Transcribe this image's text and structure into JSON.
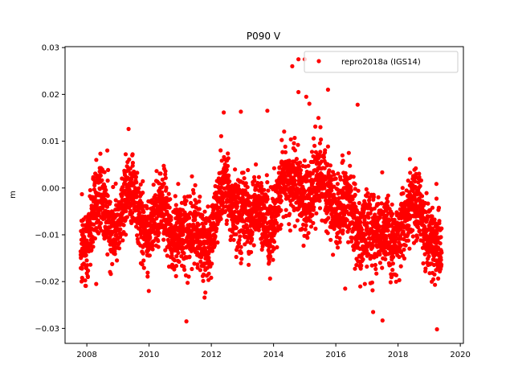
{
  "chart_data": {
    "type": "scatter",
    "title": "P090 V",
    "xlabel": "",
    "ylabel": "m",
    "xlim": [
      2007.3,
      2020.1
    ],
    "ylim": [
      -0.0332,
      0.0302
    ],
    "xticks": [
      2008,
      2010,
      2012,
      2014,
      2016,
      2018,
      2020
    ],
    "yticks": [
      -0.03,
      -0.02,
      -0.01,
      0.0,
      0.01,
      0.02,
      0.03
    ],
    "xtick_labels": [
      "2008",
      "2010",
      "2012",
      "2014",
      "2016",
      "2018",
      "2020"
    ],
    "ytick_labels": [
      "−0.03",
      "−0.02",
      "−0.01",
      "0.00",
      "0.01",
      "0.02",
      "0.03"
    ],
    "grid": false,
    "legend_position": "top-right",
    "series": [
      {
        "name": "repro2018a (IGS14)",
        "color": "#ff0000",
        "marker": "circle",
        "x_range": [
          2007.8,
          2019.4
        ],
        "trend_knots": {
          "x": [
            2007.8,
            2008.0,
            2008.5,
            2009.0,
            2009.5,
            2010.0,
            2010.5,
            2011.0,
            2011.3,
            2011.7,
            2012.0,
            2012.5,
            2013.0,
            2013.3,
            2013.7,
            2014.0,
            2014.5,
            2014.8,
            2015.2,
            2015.8,
            2016.2,
            2016.6,
            2017.0,
            2017.3,
            2017.7,
            2018.0,
            2018.3,
            2018.7,
            2019.0,
            2019.4
          ],
          "y": [
            -0.008,
            -0.009,
            -0.006,
            -0.004,
            -0.005,
            -0.006,
            -0.009,
            -0.006,
            -0.013,
            -0.011,
            -0.007,
            -0.004,
            -0.001,
            -0.01,
            -0.005,
            -0.003,
            -0.002,
            0.004,
            -0.003,
            0.002,
            -0.005,
            -0.008,
            -0.004,
            -0.015,
            -0.009,
            -0.006,
            -0.009,
            -0.003,
            -0.007,
            -0.018
          ]
        },
        "annual_amplitude": 0.0045,
        "scatter_sd": 0.0038,
        "n_points": 3600,
        "outliers": [
          {
            "x": 2014.6,
            "y": 0.026
          },
          {
            "x": 2014.8,
            "y": 0.0275
          },
          {
            "x": 2015.0,
            "y": 0.0275
          },
          {
            "x": 2014.8,
            "y": 0.0205
          },
          {
            "x": 2015.05,
            "y": 0.0195
          },
          {
            "x": 2015.15,
            "y": 0.018
          },
          {
            "x": 2015.75,
            "y": 0.021
          },
          {
            "x": 2016.7,
            "y": 0.0178
          },
          {
            "x": 2013.8,
            "y": 0.0165
          },
          {
            "x": 2012.95,
            "y": 0.0163
          },
          {
            "x": 2011.2,
            "y": -0.0285
          },
          {
            "x": 2019.25,
            "y": -0.0302
          },
          {
            "x": 2017.5,
            "y": -0.0283
          },
          {
            "x": 2017.2,
            "y": -0.0265
          },
          {
            "x": 2016.3,
            "y": -0.0215
          },
          {
            "x": 2008.3,
            "y": -0.0205
          },
          {
            "x": 2007.85,
            "y": -0.0192
          }
        ]
      }
    ]
  }
}
